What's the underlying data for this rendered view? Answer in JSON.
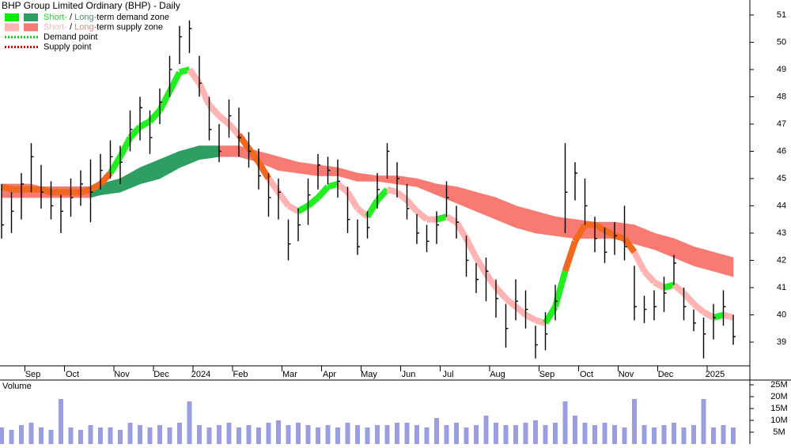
{
  "chart_data": [
    {
      "type": "ohlc",
      "title": "BHP Group Limited Ordinary (BHP) - Daily",
      "categories": [
        null,
        null,
        null,
        "Sep",
        null,
        null,
        null,
        "Oct",
        null,
        null,
        null,
        null,
        "Nov",
        null,
        null,
        null,
        "Dec",
        null,
        null,
        null,
        "2024",
        null,
        null,
        null,
        "Feb",
        null,
        null,
        null,
        null,
        "Mar",
        null,
        null,
        null,
        "Apr",
        null,
        null,
        null,
        "May",
        null,
        null,
        null,
        "Jun",
        null,
        null,
        null,
        "Jul",
        null,
        null,
        null,
        null,
        "Aug",
        null,
        null,
        null,
        null,
        "Sep",
        null,
        null,
        null,
        "Oct",
        null,
        null,
        null,
        "Nov",
        null,
        null,
        null,
        "Dec",
        null,
        null,
        null,
        null,
        "2025",
        null,
        null
      ],
      "high": [
        44.8,
        44.5,
        45.2,
        46.3,
        45.5,
        44.9,
        44.4,
        45.0,
        45.3,
        45.7,
        45.9,
        46.4,
        46.2,
        47.5,
        48.0,
        47.5,
        48.3,
        49.5,
        50.6,
        50.8,
        49.5,
        48.0,
        47.0,
        47.9,
        47.6,
        46.7,
        46.1,
        45.2,
        45.0,
        43.5,
        43.9,
        45.0,
        45.9,
        45.8,
        45.7,
        44.7,
        43.5,
        43.8,
        45.2,
        46.3,
        45.6,
        44.8,
        43.7,
        43.3,
        43.8,
        44.9,
        44.0,
        42.9,
        41.9,
        42.1,
        41.3,
        40.4,
        41.3,
        40.9,
        39.6,
        40.1,
        41.1,
        46.3,
        45.6,
        45.0,
        43.6,
        43.2,
        43.4,
        44.0,
        41.8,
        40.7,
        40.9,
        41.4,
        42.2,
        41.0,
        40.2,
        39.9,
        40.4,
        40.9,
        40.0
      ],
      "low": [
        42.8,
        43.0,
        43.5,
        44.5,
        43.9,
        43.5,
        43.0,
        43.6,
        44.0,
        43.4,
        44.6,
        45.0,
        44.8,
        46.0,
        46.4,
        45.9,
        47.0,
        48.0,
        49.2,
        49.6,
        48.0,
        46.4,
        45.6,
        46.5,
        45.8,
        45.4,
        44.6,
        43.6,
        43.5,
        42.0,
        42.7,
        43.3,
        44.6,
        44.8,
        44.3,
        43.0,
        42.2,
        42.8,
        43.9,
        45.0,
        44.3,
        43.5,
        42.6,
        42.3,
        42.6,
        43.6,
        42.8,
        41.4,
        40.8,
        40.5,
        39.9,
        38.8,
        39.8,
        39.5,
        38.4,
        38.7,
        39.8,
        43.0,
        44.2,
        43.3,
        42.3,
        41.9,
        42.2,
        42.0,
        39.8,
        39.7,
        39.8,
        40.1,
        41.1,
        39.8,
        39.4,
        38.4,
        39.1,
        39.6,
        38.9
      ],
      "close": [
        43.3,
        43.8,
        44.8,
        45.8,
        44.5,
        44.0,
        43.8,
        44.3,
        44.8,
        44.5,
        45.3,
        45.8,
        45.6,
        46.8,
        47.6,
        46.5,
        47.8,
        49.0,
        50.2,
        50.5,
        48.5,
        46.8,
        46.0,
        47.3,
        46.5,
        46.0,
        45.1,
        44.3,
        44.5,
        42.6,
        43.3,
        44.4,
        45.5,
        45.3,
        44.9,
        43.5,
        42.5,
        43.2,
        44.6,
        46.0,
        45.0,
        43.9,
        43.0,
        42.7,
        43.3,
        44.3,
        43.4,
        42.0,
        41.3,
        41.6,
        40.6,
        39.5,
        40.5,
        40.2,
        38.9,
        39.3,
        40.5,
        44.5,
        45.2,
        44.0,
        42.8,
        42.3,
        42.9,
        42.5,
        40.3,
        40.2,
        40.3,
        40.8,
        41.9,
        40.3,
        39.7,
        39.3,
        39.9,
        40.3,
        39.2
      ],
      "short_term": [
        44.7,
        44.6,
        44.6,
        44.6,
        44.6,
        44.5,
        44.5,
        44.5,
        44.5,
        44.6,
        44.8,
        45.2,
        45.8,
        46.5,
        46.9,
        47.1,
        47.5,
        48.2,
        48.9,
        49.0,
        48.5,
        47.7,
        47.3,
        47.0,
        46.6,
        46.1,
        45.6,
        45.0,
        44.5,
        44.0,
        43.8,
        44.0,
        44.3,
        44.7,
        44.8,
        44.5,
        43.9,
        43.6,
        44.2,
        44.6,
        44.5,
        44.2,
        43.8,
        43.5,
        43.5,
        43.6,
        43.4,
        42.8,
        42.1,
        41.5,
        41.0,
        40.6,
        40.3,
        40.0,
        39.8,
        39.7,
        40.3,
        41.6,
        42.7,
        43.3,
        43.3,
        43.1,
        42.9,
        42.8,
        42.3,
        41.6,
        41.2,
        41.0,
        41.1,
        40.8,
        40.4,
        40.1,
        39.9,
        40.0,
        39.9
      ],
      "long_term_upper": [
        44.8,
        44.8,
        44.8,
        44.8,
        44.7,
        44.7,
        44.7,
        44.7,
        44.7,
        44.7,
        44.8,
        44.9,
        45.0,
        45.2,
        45.4,
        45.55,
        45.7,
        45.85,
        46.0,
        46.1,
        46.2,
        46.2,
        46.2,
        46.2,
        46.2,
        46.1,
        46.0,
        45.9,
        45.8,
        45.7,
        45.6,
        45.55,
        45.5,
        45.45,
        45.4,
        45.3,
        45.2,
        45.15,
        45.1,
        45.1,
        45.1,
        45.05,
        45.0,
        44.9,
        44.8,
        44.75,
        44.7,
        44.6,
        44.5,
        44.4,
        44.3,
        44.15,
        44.0,
        43.9,
        43.8,
        43.7,
        43.6,
        43.55,
        43.5,
        43.45,
        43.4,
        43.4,
        43.4,
        43.35,
        43.3,
        43.15,
        43.0,
        42.9,
        42.8,
        42.65,
        42.5,
        42.4,
        42.3,
        42.2,
        42.1
      ],
      "long_term_lower": [
        44.3,
        44.3,
        44.3,
        44.3,
        44.3,
        44.3,
        44.3,
        44.3,
        44.3,
        44.3,
        44.4,
        44.45,
        44.5,
        44.65,
        44.8,
        44.9,
        45.0,
        45.2,
        45.4,
        45.55,
        45.7,
        45.75,
        45.8,
        45.8,
        45.8,
        45.7,
        45.6,
        45.45,
        45.3,
        45.25,
        45.2,
        45.15,
        45.1,
        45.1,
        45.1,
        45.0,
        44.9,
        44.9,
        44.9,
        44.85,
        44.8,
        44.75,
        44.7,
        44.55,
        44.4,
        44.25,
        44.1,
        43.95,
        43.8,
        43.65,
        43.5,
        43.35,
        43.2,
        43.1,
        43.0,
        42.95,
        42.9,
        42.85,
        42.8,
        42.8,
        42.8,
        42.8,
        42.8,
        42.7,
        42.6,
        42.5,
        42.4,
        42.25,
        42.1,
        41.95,
        41.8,
        41.7,
        41.6,
        41.5,
        41.4
      ],
      "ylim": [
        38.13,
        51.55
      ],
      "yticks": [
        39,
        40,
        41,
        42,
        43,
        44,
        45,
        46,
        47,
        48,
        49,
        50,
        51
      ],
      "colors": {
        "bar": "#000000",
        "short_demand": "#22ee22",
        "long_demand": "#2e9e62",
        "short_supply": "#ffb3b3",
        "long_supply": "#f77b72",
        "overlap": "#f2691e"
      },
      "legend": [
        {
          "colors": [
            "#00ee00",
            "#2e9e62"
          ],
          "parts": [
            "Short-",
            " / ",
            "Long-",
            "term demand zone"
          ]
        },
        {
          "colors": [
            "#ffb3b3",
            "#f77b72"
          ],
          "parts": [
            "Short-",
            " / ",
            "Long-",
            "term supply zone"
          ]
        },
        {
          "dotted": "#00cc00",
          "parts": [
            "Demand point"
          ]
        },
        {
          "dotted": "#dd0000",
          "parts": [
            "Supply point"
          ]
        }
      ]
    },
    {
      "type": "bar",
      "title": "Volume",
      "values": [
        7,
        6,
        8,
        9,
        7,
        6,
        19,
        7,
        6,
        8,
        7,
        7,
        6,
        9,
        8,
        7,
        8,
        7,
        9,
        18,
        8,
        7,
        8,
        9,
        7,
        8,
        7,
        9,
        10,
        8,
        9,
        8,
        7,
        8,
        7,
        9,
        8,
        7,
        8,
        8,
        9,
        9,
        8,
        7,
        11,
        8,
        9,
        7,
        8,
        12,
        9,
        8,
        8,
        9,
        10,
        8,
        9,
        18,
        12,
        9,
        8,
        9,
        8,
        7,
        19,
        8,
        7,
        8,
        9,
        7,
        8,
        19,
        7,
        8,
        7
      ],
      "color": "#9a9ee0",
      "title_color": "#5a1a8a",
      "ylim": [
        0,
        27
      ],
      "yticks": [
        {
          "value": 5,
          "label": "5M"
        },
        {
          "value": 10,
          "label": "10M"
        },
        {
          "value": 15,
          "label": "15M"
        },
        {
          "value": 20,
          "label": "20M"
        },
        {
          "value": 25,
          "label": "25M"
        }
      ]
    }
  ]
}
